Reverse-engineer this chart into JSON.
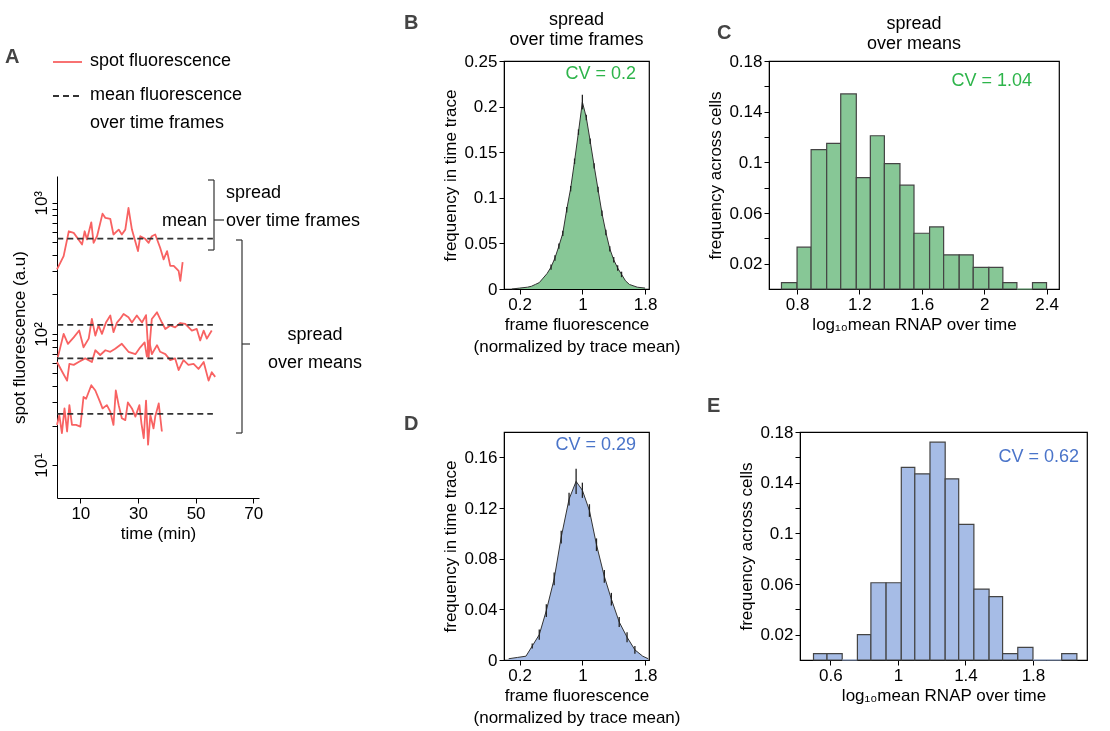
{
  "chart_data": [
    {
      "type": "line",
      "xlabel": "time (min)",
      "ylabel": "spot fluorescence (a.u)",
      "log": "y",
      "xlim": [
        1.9,
        72
      ],
      "xticks": [
        10,
        30,
        50,
        70
      ],
      "ylim": [
        5.6,
        1600
      ],
      "yticks": [
        {
          "value": 10,
          "label": "10¹"
        },
        {
          "value": 20,
          "label": null
        },
        {
          "value": 30,
          "label": null
        },
        {
          "value": 40,
          "label": null
        },
        {
          "value": 50,
          "label": null
        },
        {
          "value": 60,
          "label": null
        },
        {
          "value": 70,
          "label": null
        },
        {
          "value": 80,
          "label": null
        },
        {
          "value": 90,
          "label": null
        },
        {
          "value": 100,
          "label": "10²"
        },
        {
          "value": 200,
          "label": null
        },
        {
          "value": 300,
          "label": null
        },
        {
          "value": 400,
          "label": null
        },
        {
          "value": 500,
          "label": null
        },
        {
          "value": 600,
          "label": null
        },
        {
          "value": 700,
          "label": null
        },
        {
          "value": 800,
          "label": null
        },
        {
          "value": 900,
          "label": null
        },
        {
          "value": 1000,
          "label": "10³"
        }
      ],
      "legend": "top",
      "marker": "none",
      "annotations": [
        "A",
        "mean",
        "spread\nover time frames",
        "spread\nover means"
      ],
      "series": [
        {
          "name": "spot fluorescence",
          "color": "#f86262",
          "x": [
            1.9,
            4.2,
            6.0,
            7.7,
            10.6,
            11.5,
            12.3,
            13.8,
            14.6,
            15.8,
            17.7,
            18.7,
            20.4,
            21.5,
            23.3,
            24.4,
            25.6,
            26.7,
            27.9,
            30.0,
            30.8,
            32.5,
            33.7,
            34.8,
            36.0,
            37.7,
            38.9,
            40.1,
            41.2,
            42.4,
            44.1,
            44.7,
            45.5
          ],
          "values": [
            310,
            392,
            606,
            589,
            481,
            606,
            525,
            709,
            495,
            556,
            826,
            766,
            752,
            573,
            624,
            573,
            624,
            912,
            624,
            428,
            556,
            531,
            495,
            556,
            573,
            454,
            370,
            428,
            330,
            330,
            302,
            254,
            353
          ]
        },
        {
          "color": "#f86262",
          "x": [
            2.2,
            4.2,
            5.7,
            7.7,
            9.6,
            11.1,
            12.9,
            14.0,
            15.2,
            16.3,
            17.5,
            18.9,
            20.4,
            21.5,
            22.7,
            23.8,
            25.0,
            26.7,
            27.9,
            29.6,
            31.4,
            32.8,
            33.7,
            34.8,
            36.6,
            38.3,
            39.5,
            41.2,
            42.9,
            44.7,
            46.4,
            48.7,
            50.4,
            51.6,
            52.8,
            53.9,
            55.6
          ],
          "values": [
            66.5,
            100,
            84,
            94,
            106,
            79,
            92,
            130,
            97,
            116,
            100,
            122,
            138,
            103,
            122,
            130,
            142,
            134,
            122,
            138,
            122,
            139,
            66.5,
            130,
            146,
            122,
            109,
            116,
            112,
            121,
            119,
            106,
            109,
            89,
            106,
            92,
            106
          ]
        },
        {
          "color": "#f86262",
          "x": [
            1.9,
            3.8,
            5.4,
            6.2,
            7.7,
            9.4,
            11.7,
            14.0,
            15.2,
            16.9,
            18.7,
            20.4,
            22.1,
            24.4,
            26.7,
            29.1,
            30.8,
            32.3,
            33.1,
            33.9,
            34.8,
            36.6,
            37.7,
            39.5,
            41.2,
            42.9,
            44.1,
            45.8,
            47.5,
            49.3,
            51.0,
            52.8,
            54.5,
            55.6,
            56.8
          ],
          "values": [
            61,
            51,
            44,
            59,
            58,
            61,
            65,
            61,
            75,
            69,
            75,
            73,
            77,
            84,
            73,
            70,
            79,
            86,
            67,
            89,
            70,
            82,
            73,
            70,
            63,
            65,
            53,
            63,
            58,
            59,
            54,
            61,
            44,
            51,
            47
          ]
        },
        {
          "color": "#f86262",
          "x": [
            1.9,
            2.7,
            3.6,
            4.5,
            5.4,
            6.2,
            7.1,
            8.5,
            10.0,
            11.1,
            12.0,
            13.8,
            15.2,
            16.9,
            17.7,
            19.2,
            20.4,
            21.5,
            22.3,
            23.3,
            24.4,
            25.6,
            26.5,
            27.9,
            29.1,
            30.5,
            31.2,
            32.0,
            32.8,
            33.5,
            34.3,
            35.4,
            36.0,
            37.2,
            38.3
          ],
          "values": [
            20.2,
            24,
            17.5,
            27,
            18,
            28.6,
            20.2,
            20.2,
            19.6,
            33,
            32,
            40.6,
            37,
            30,
            27,
            28.6,
            25.5,
            20.2,
            37,
            28.6,
            22.7,
            22,
            30,
            27,
            23.4,
            28.6,
            20.8,
            16,
            31,
            14.3,
            24,
            19,
            23.4,
            29.5,
            18
          ]
        },
        {
          "name": "mean fluorescence\nover time frames",
          "color": "#333333",
          "line_style": "dashed",
          "x": [
            2,
            56
          ],
          "values": [
            533,
            533
          ]
        },
        {
          "color": "#333333",
          "line_style": "dashed",
          "x": [
            2,
            56
          ],
          "values": [
            117,
            117
          ]
        },
        {
          "color": "#333333",
          "line_style": "dashed",
          "x": [
            2,
            56
          ],
          "values": [
            65,
            65
          ]
        },
        {
          "color": "#333333",
          "line_style": "dashed",
          "x": [
            2,
            56
          ],
          "values": [
            24.5,
            24.5
          ]
        }
      ]
    },
    {
      "type": "area",
      "title": "spread\nover time frames",
      "xlabel": "frame fluorescence\n(normalized by trace mean)",
      "ylabel": "frequency in time trace",
      "xlim": [
        0,
        1.85
      ],
      "xticks": [
        0.2,
        1,
        1.8
      ],
      "ylim": [
        0,
        0.25
      ],
      "yticks": [
        0,
        0.05,
        0.1,
        0.15,
        0.2,
        0.25
      ],
      "annotations": [
        "B",
        "CV = 0.2"
      ],
      "series": [
        {
          "color": "#87c796",
          "x": [
            0.1,
            0.2,
            0.3,
            0.35,
            0.4,
            0.45,
            0.5,
            0.55,
            0.6,
            0.65,
            0.7,
            0.75,
            0.8,
            0.85,
            0.9,
            0.95,
            1.0,
            1.05,
            1.1,
            1.15,
            1.2,
            1.25,
            1.3,
            1.35,
            1.4,
            1.45,
            1.5,
            1.55,
            1.6,
            1.7,
            1.8
          ],
          "values": [
            0,
            0.001,
            0.002,
            0.003,
            0.005,
            0.007,
            0.012,
            0.017,
            0.024,
            0.034,
            0.047,
            0.061,
            0.087,
            0.11,
            0.14,
            0.172,
            0.205,
            0.188,
            0.162,
            0.135,
            0.109,
            0.083,
            0.062,
            0.044,
            0.032,
            0.023,
            0.016,
            0.009,
            0.005,
            0.002,
            0.001
          ],
          "errors": [
            null,
            null,
            null,
            null,
            null,
            null,
            null,
            null,
            0.003,
            0.003,
            0.003,
            0.003,
            0.003,
            0.003,
            0.003,
            0.003,
            0.008,
            0.003,
            0.003,
            0.003,
            0.003,
            0.003,
            0.003,
            0.003,
            0.003,
            0.003,
            0.003,
            null,
            null,
            null,
            null
          ]
        }
      ]
    },
    {
      "type": "histogram",
      "title": "spread\nover means",
      "xlabel": "log₁₀mean RNAP over time",
      "ylabel": "frequency across cells",
      "xlim": [
        0.62,
        2.48
      ],
      "xticks": [
        0.8,
        1.2,
        1.6,
        2,
        2.4
      ],
      "ylim": [
        0,
        0.18
      ],
      "yticks": [
        0.02,
        {
          "value": 0.04,
          "label": null
        },
        0.06,
        {
          "value": 0.08,
          "label": null
        },
        0.1,
        {
          "value": 0.12,
          "label": null
        },
        0.14,
        {
          "value": 0.16,
          "label": null
        },
        0.18
      ],
      "annotations": [
        "C",
        "CV = 1.04"
      ],
      "color": "#87c796",
      "bins": [
        0.7,
        0.8,
        0.89,
        0.99,
        1.08,
        1.18,
        1.27,
        1.36,
        1.46,
        1.55,
        1.65,
        1.74,
        1.84,
        1.93,
        2.03,
        2.12,
        2.21,
        2.31,
        2.4
      ],
      "values": [
        0.005,
        0.033,
        0.11,
        0.115,
        0.154,
        0.088,
        0.121,
        0.099,
        0.082,
        0.044,
        0.049,
        0.027,
        0.027,
        0.017,
        0.017,
        0.005,
        0,
        0.005
      ]
    },
    {
      "type": "area",
      "xlabel": "frame fluorescence\n(normalized by trace mean)",
      "ylabel": "frequency in time trace",
      "xlim": [
        0,
        1.85
      ],
      "xticks": [
        0.2,
        1,
        1.8
      ],
      "ylim": [
        0,
        0.18
      ],
      "yticks": [
        0,
        0.04,
        0.08,
        0.12,
        0.16
      ],
      "annotations": [
        "D",
        "CV = 0.29"
      ],
      "series": [
        {
          "color": "#a6bce6",
          "x": [
            0.06,
            0.17,
            0.28,
            0.36,
            0.45,
            0.54,
            0.64,
            0.73,
            0.83,
            0.92,
            1.0,
            1.09,
            1.18,
            1.28,
            1.37,
            1.47,
            1.57,
            1.67,
            1.77,
            1.84
          ],
          "values": [
            0.001,
            0.002,
            0.003,
            0.011,
            0.02,
            0.039,
            0.064,
            0.097,
            0.127,
            0.141,
            0.134,
            0.118,
            0.091,
            0.066,
            0.048,
            0.03,
            0.018,
            0.008,
            0.003,
            0.001
          ],
          "errors": [
            null,
            null,
            null,
            0.002,
            0.004,
            0.005,
            0.005,
            0.005,
            0.005,
            0.01,
            0.006,
            0.005,
            0.005,
            0.005,
            0.005,
            0.004,
            0.004,
            0.003,
            null,
            null
          ]
        }
      ]
    },
    {
      "type": "histogram",
      "xlabel": "log₁₀mean RNAP over time",
      "ylabel": "frequency across cells",
      "xlim": [
        0.42,
        2.12
      ],
      "xticks": [
        0.6,
        1,
        1.4,
        1.8
      ],
      "ylim": [
        0,
        0.18
      ],
      "yticks": [
        0.02,
        {
          "value": 0.04,
          "label": null
        },
        0.06,
        {
          "value": 0.08,
          "label": null
        },
        0.1,
        {
          "value": 0.12,
          "label": null
        },
        0.14,
        {
          "value": 0.16,
          "label": null
        },
        0.18
      ],
      "annotations": [
        "E",
        "CV = 0.62"
      ],
      "color": "#a6bce6",
      "bins": [
        0.5,
        0.58,
        0.67,
        0.76,
        0.84,
        0.93,
        1.02,
        1.1,
        1.19,
        1.28,
        1.36,
        1.45,
        1.54,
        1.62,
        1.71,
        1.8,
        1.88,
        1.97,
        2.06
      ],
      "values": [
        0.005,
        0.005,
        0,
        0.02,
        0.061,
        0.061,
        0.152,
        0.147,
        0.172,
        0.143,
        0.107,
        0.056,
        0.05,
        0.005,
        0.01,
        0,
        0,
        0.005
      ]
    }
  ]
}
